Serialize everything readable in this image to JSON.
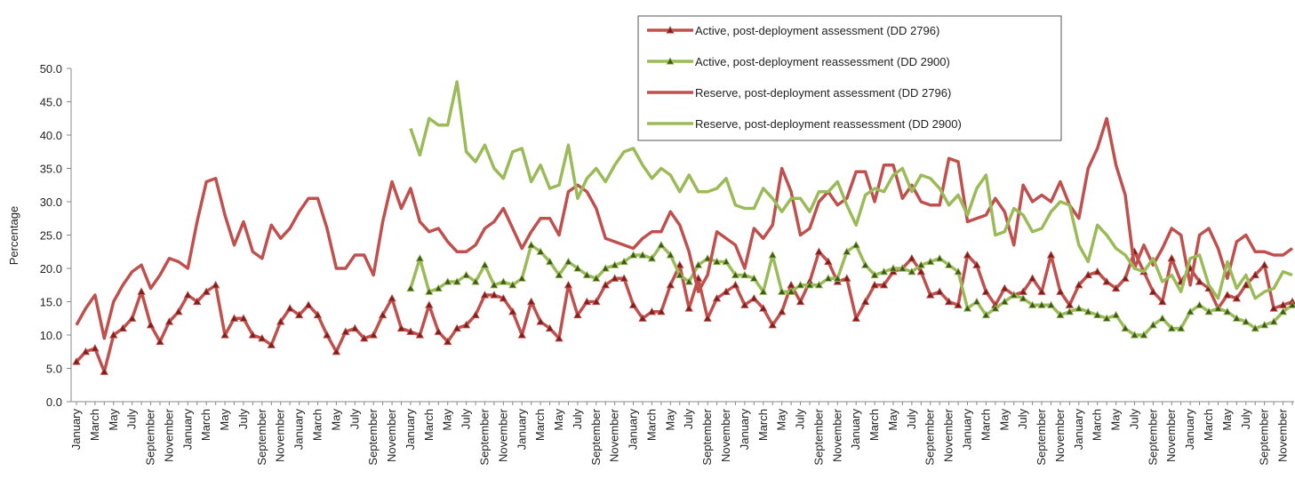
{
  "chart_data": {
    "type": "line",
    "y_label": "Percentage",
    "categories": [
      "January",
      null,
      "March",
      null,
      "May",
      null,
      "July",
      null,
      "September",
      null,
      "November",
      null,
      "January",
      null,
      "March",
      null,
      "May",
      null,
      "July",
      null,
      "September",
      null,
      "November",
      null,
      "January",
      null,
      "March",
      null,
      "May",
      null,
      "July",
      null,
      "September",
      null,
      "November",
      null,
      "January",
      null,
      "March",
      null,
      "May",
      null,
      "July",
      null,
      "September",
      null,
      "November",
      null,
      "January",
      null,
      "March",
      null,
      "May",
      null,
      "July",
      null,
      "September",
      null,
      "November",
      null,
      "January",
      null,
      "March",
      null,
      "May",
      null,
      "July",
      null,
      "September",
      null,
      "November",
      null,
      "January",
      null,
      "March",
      null,
      "May",
      null,
      "July",
      null,
      "September",
      null,
      "November",
      null,
      "January",
      null,
      "March",
      null,
      "May",
      null,
      "July",
      null,
      "September",
      null,
      "November",
      null,
      "January",
      null,
      "March",
      null,
      "May",
      null,
      "July",
      null,
      "September",
      null,
      "November",
      null,
      "January",
      null,
      "March",
      null,
      "May",
      null,
      "July",
      null,
      "September",
      null,
      "November",
      null,
      "January",
      null,
      "March",
      null,
      "May",
      null,
      "July",
      null,
      "September",
      null,
      "November",
      null
    ],
    "ylim": [
      0,
      50
    ],
    "yticks": [
      {
        "value": 0,
        "label": "0.0"
      },
      {
        "value": 5,
        "label": "5.0"
      },
      {
        "value": 10,
        "label": "10.0"
      },
      {
        "value": 15,
        "label": "15.0"
      },
      {
        "value": 20,
        "label": "20.0"
      },
      {
        "value": 25,
        "label": "25.0"
      },
      {
        "value": 30,
        "label": "30.0"
      },
      {
        "value": 35,
        "label": "35.0"
      },
      {
        "value": 40,
        "label": "40.0"
      },
      {
        "value": 45,
        "label": "45.0"
      },
      {
        "value": 50,
        "label": "50.0"
      }
    ],
    "grid": false,
    "legend": "top-right",
    "series": [
      {
        "name": "Active, post-deployment assessment (DD 2796)",
        "color": "#c0504d",
        "marker": "triangle",
        "marker_color": "#7f1f1c",
        "values": [
          6,
          7.5,
          8,
          4.5,
          10,
          11,
          12.5,
          16.5,
          11.5,
          9,
          12,
          13.5,
          16,
          15,
          16.5,
          17.5,
          10,
          12.5,
          12.5,
          10,
          9.5,
          8.5,
          12,
          14,
          13,
          14.5,
          13,
          10,
          7.5,
          10.5,
          11,
          9.5,
          10,
          13,
          15.5,
          11,
          10.5,
          10,
          14.5,
          10.5,
          9,
          11,
          11.5,
          13,
          16,
          16,
          15.5,
          13.5,
          10,
          15,
          12,
          11,
          9.5,
          17.5,
          13,
          15,
          15,
          17.5,
          18.5,
          18.5,
          14.5,
          12.5,
          13.5,
          13.5,
          17.5,
          20.5,
          14,
          18.5,
          12.5,
          15.5,
          16.5,
          17.5,
          14.5,
          15.5,
          14,
          11.5,
          13.5,
          17.5,
          15,
          18,
          22.5,
          21,
          18,
          18.5,
          12.5,
          15,
          17.5,
          17.5,
          19.5,
          20,
          21.5,
          19.5,
          16,
          16.5,
          15,
          14.5,
          22,
          20.5,
          16.5,
          14.5,
          17,
          16,
          16.5,
          18.5,
          16.5,
          22,
          16.5,
          14.5,
          17.5,
          19,
          19.5,
          18,
          17,
          18.5,
          22.5,
          19.5,
          16.5,
          15,
          21.5,
          18,
          20,
          18,
          17,
          14,
          16,
          15.5,
          17.5,
          19,
          20.5,
          14,
          14.5,
          15
        ]
      },
      {
        "name": "Active, post-deployment reassessment (DD 2900)",
        "color": "#9bbb59",
        "marker": "triangle",
        "marker_color": "#3d5a1a",
        "values": [
          null,
          null,
          null,
          null,
          null,
          null,
          null,
          null,
          null,
          null,
          null,
          null,
          null,
          null,
          null,
          null,
          null,
          null,
          null,
          null,
          null,
          null,
          null,
          null,
          null,
          null,
          null,
          null,
          null,
          null,
          null,
          null,
          null,
          null,
          null,
          null,
          17,
          21.5,
          16.5,
          17,
          18,
          18,
          19,
          18,
          20.5,
          17.5,
          18,
          17.5,
          18.5,
          23.5,
          22.5,
          21,
          19,
          21,
          20,
          19,
          18.5,
          20,
          20.5,
          21,
          22,
          22,
          21.5,
          23.5,
          22,
          19,
          18,
          20.5,
          21.5,
          21,
          21,
          19,
          19,
          18.5,
          16.5,
          22,
          16.5,
          16.5,
          17.5,
          17.5,
          17.5,
          18.5,
          18.5,
          22.5,
          23.5,
          20.5,
          19,
          19.5,
          20,
          20,
          19.5,
          20.5,
          21,
          21.5,
          20.5,
          19.5,
          14,
          15,
          13,
          14,
          15,
          16,
          15.5,
          14.5,
          14.5,
          14.5,
          13,
          13.5,
          14,
          13.5,
          13,
          12.5,
          13,
          11,
          10,
          10,
          11.5,
          12.5,
          11,
          11,
          13.5,
          14.5,
          13.5,
          14,
          13.5,
          12.5,
          12,
          11,
          11.5,
          12,
          13.5,
          14.5
        ]
      },
      {
        "name": "Reserve, post-deployment assessment (DD 2796)",
        "color": "#c0504d",
        "values": [
          11.5,
          14,
          16,
          9.5,
          15,
          17.5,
          19.5,
          20.5,
          17,
          19,
          21.5,
          21,
          20,
          27,
          33,
          33.5,
          28,
          23.5,
          27,
          22.5,
          21.5,
          26.5,
          24.5,
          26,
          28.5,
          30.5,
          30.5,
          26,
          20,
          20,
          22,
          22,
          19,
          27,
          33,
          29,
          32,
          27,
          25.5,
          26,
          24,
          22.5,
          22.5,
          23.5,
          26,
          27,
          29,
          26,
          23,
          25.5,
          27.5,
          27.5,
          25,
          31.5,
          32.5,
          31.5,
          29,
          24.5,
          24,
          23.5,
          23,
          24.5,
          25.5,
          25.5,
          28.5,
          26.5,
          22.5,
          16.5,
          19,
          25.5,
          24.5,
          23.5,
          20,
          26,
          24.5,
          26.5,
          35,
          31.5,
          25,
          26,
          30,
          31.5,
          29.5,
          30.5,
          34.5,
          34.5,
          30,
          35.5,
          35.5,
          30.5,
          32.5,
          30,
          29.5,
          29.5,
          36.5,
          36,
          27,
          27.5,
          28,
          30.5,
          28.5,
          23.5,
          32.5,
          30,
          31,
          30,
          33,
          29.5,
          27.5,
          35,
          38,
          42.5,
          35.5,
          31,
          20,
          23.5,
          20.5,
          23,
          26,
          25,
          17.5,
          25,
          26,
          23,
          18.5,
          24,
          25,
          22.5,
          22.5,
          22,
          22,
          23
        ]
      },
      {
        "name": "Reserve, post-deployment reassessment (DD 2900)",
        "color": "#9bbb59",
        "values": [
          null,
          null,
          null,
          null,
          null,
          null,
          null,
          null,
          null,
          null,
          null,
          null,
          null,
          null,
          null,
          null,
          null,
          null,
          null,
          null,
          null,
          null,
          null,
          null,
          null,
          null,
          null,
          null,
          null,
          null,
          null,
          null,
          null,
          null,
          null,
          null,
          41,
          37,
          42.5,
          41.5,
          41.5,
          48,
          37.5,
          36,
          38.5,
          35,
          33.5,
          37.5,
          38,
          33,
          35.5,
          32,
          32.5,
          38.5,
          30.5,
          33.5,
          35,
          33,
          35.5,
          37.5,
          38,
          35.5,
          33.5,
          35,
          34,
          31.5,
          34,
          31.5,
          31.5,
          32,
          33.5,
          29.5,
          29,
          29,
          32,
          30.5,
          28.5,
          30.5,
          30.5,
          28.5,
          31.5,
          31.5,
          33,
          29.5,
          26.5,
          31,
          32,
          31.5,
          34,
          35,
          31.5,
          34,
          33.5,
          32,
          29.5,
          31,
          28,
          32,
          34,
          25,
          25.5,
          29,
          28,
          25.5,
          26,
          28.5,
          30,
          29.5,
          23.5,
          21,
          26.5,
          25,
          23,
          22,
          20,
          19.5,
          21.5,
          18,
          19,
          16.5,
          21.5,
          22,
          17.5,
          15.5,
          21,
          17,
          19,
          15.5,
          16.5,
          17,
          19.5,
          19
        ]
      }
    ]
  }
}
